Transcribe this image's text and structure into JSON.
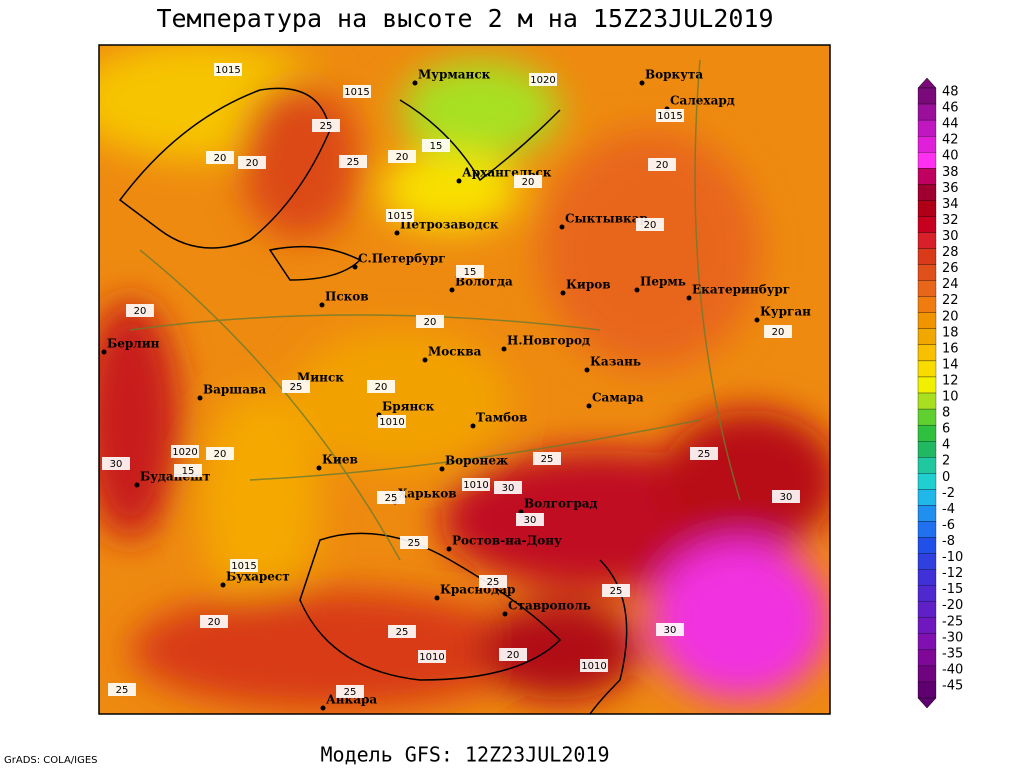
{
  "title": "Температура на высоте 2 м на 15Z23JUL2019",
  "footer": "Модель GFS: 12Z23JUL2019",
  "credit": "GrADS: COLA/IGES",
  "legend": {
    "levels": [
      48,
      46,
      44,
      42,
      40,
      38,
      36,
      34,
      32,
      30,
      28,
      26,
      24,
      22,
      20,
      18,
      16,
      14,
      12,
      10,
      8,
      6,
      4,
      2,
      0,
      -2,
      -4,
      -6,
      -8,
      -10,
      -12,
      -15,
      -20,
      -25,
      -30,
      -35,
      -40,
      -45
    ],
    "colors": [
      "#7a0a7a",
      "#9a109a",
      "#c018c0",
      "#e020d8",
      "#ff30f0",
      "#c00060",
      "#a00030",
      "#b00018",
      "#c80020",
      "#d8202a",
      "#d83a1a",
      "#e0501a",
      "#e8661a",
      "#f07c10",
      "#f09400",
      "#f0a800",
      "#f8c000",
      "#f8dc00",
      "#f0f000",
      "#a8e020",
      "#60d030",
      "#30c040",
      "#20b860",
      "#20c8a0",
      "#20d0d0",
      "#20b8e8",
      "#2090f0",
      "#2070f0",
      "#2050e8",
      "#3040e0",
      "#4030d8",
      "#5028d0",
      "#6020c8",
      "#7018c0",
      "#8010b0",
      "#800898",
      "#700480",
      "#600070"
    ]
  },
  "cities": [
    "Мурманск",
    "Воркута",
    "Салехард",
    "Архангельск",
    "Сыктывкар",
    "Петрозаводск",
    "С.Петербург",
    "Вологда",
    "Киров",
    "Пермь",
    "Екатеринбург",
    "Курган",
    "Псков",
    "Берлин",
    "Н.Новгород",
    "Москва",
    "Казань",
    "Варшава",
    "Минск",
    "Самара",
    "Брянск",
    "Тамбов",
    "Киев",
    "Воронеж",
    "Будапешт",
    "Харьков",
    "Волгоград",
    "Ростов-на-Дону",
    "Бухарест",
    "Краснодар",
    "Ставрополь",
    "Анкара"
  ],
  "contour_labels": [
    1015,
    1015,
    1020,
    1015,
    1015,
    20,
    20,
    25,
    25,
    20,
    15,
    20,
    20,
    20,
    15,
    20,
    20,
    20,
    20,
    25,
    1010,
    1020,
    15,
    20,
    30,
    1010,
    30,
    30,
    25,
    25,
    25,
    25,
    1015,
    25,
    25,
    30,
    20,
    25,
    1010,
    1010,
    20,
    25,
    25,
    30
  ]
}
